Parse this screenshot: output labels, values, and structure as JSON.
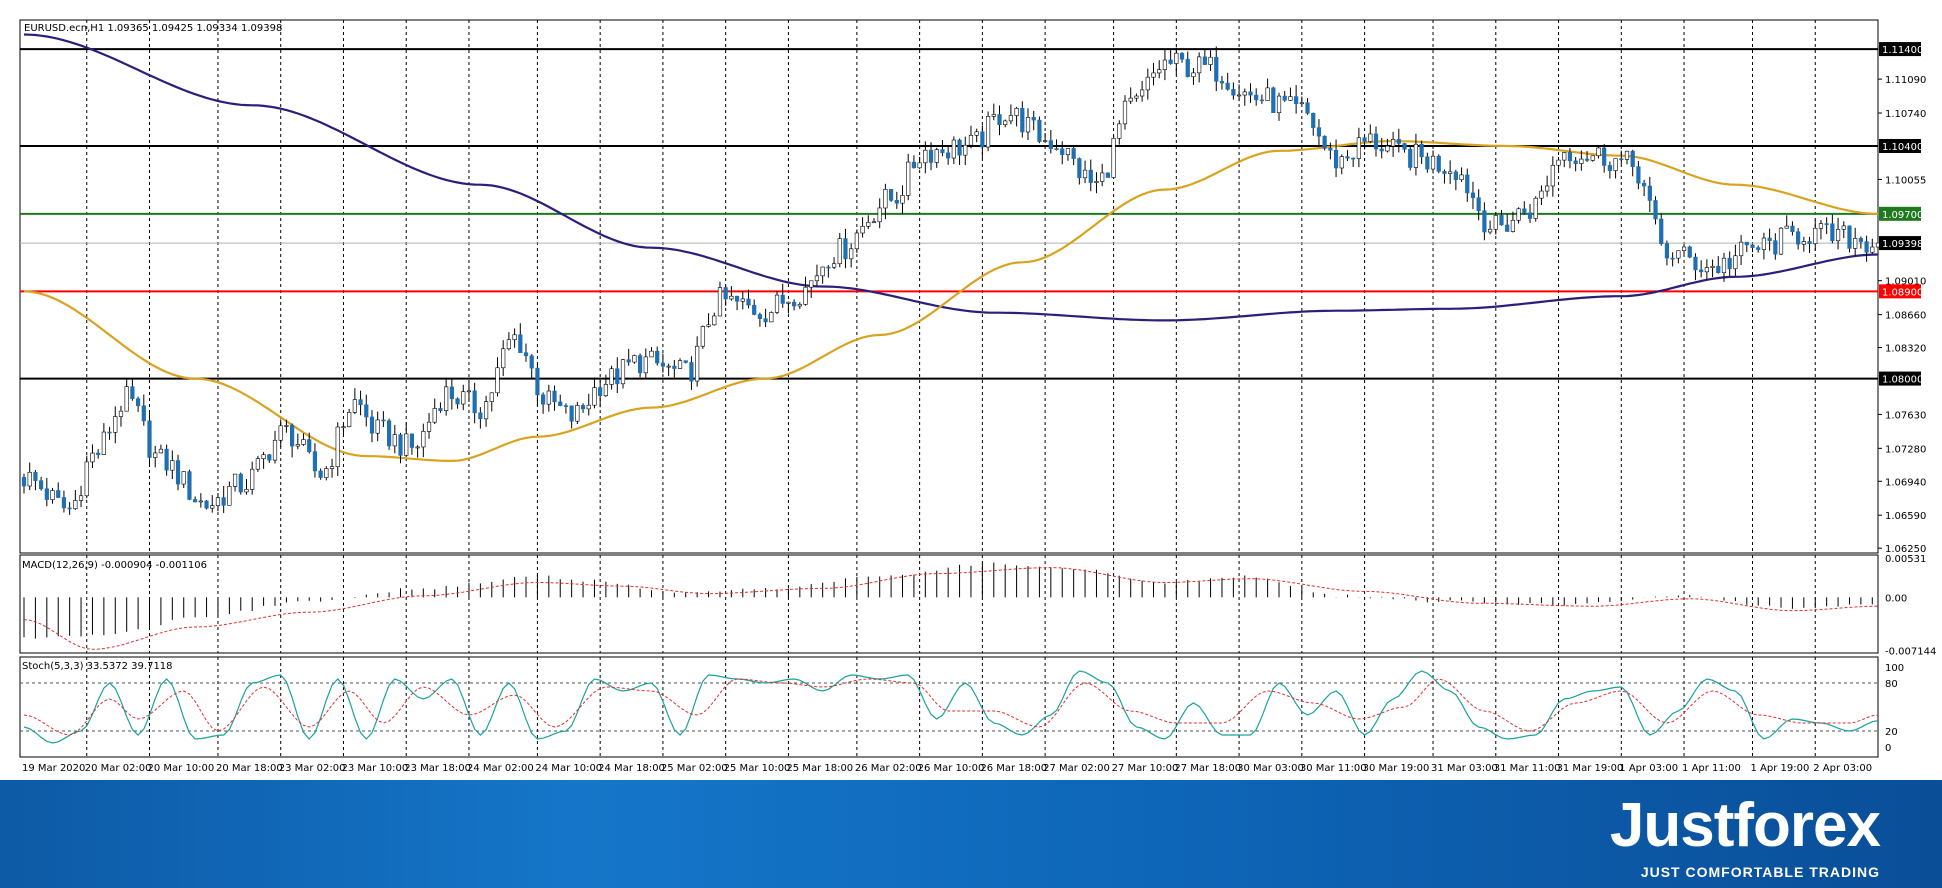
{
  "chart_data": {
    "type": "candlestick",
    "symbol_line": "EURUSD.ecn,H1  1.09365 1.09425 1.09334 1.09398",
    "price_axis_ticks": [
      "1.11090",
      "1.10740",
      "1.10055",
      "1.09010",
      "1.08660",
      "1.08320",
      "1.07630",
      "1.07280",
      "1.06940",
      "1.06590",
      "1.06250"
    ],
    "ylim": [
      1.062,
      1.117
    ],
    "levels": [
      {
        "label": "1.11400",
        "value": 1.114,
        "color": "#000000"
      },
      {
        "label": "1.10400",
        "value": 1.104,
        "color": "#000000"
      },
      {
        "label": "1.09700",
        "value": 1.097,
        "color": "#1f7a1f"
      },
      {
        "label": "1.09398",
        "value": 1.09398,
        "color": "#000000",
        "current": true
      },
      {
        "label": "1.08900",
        "value": 1.089,
        "color": "#ff0000"
      },
      {
        "label": "1.08000",
        "value": 1.08,
        "color": "#000000"
      }
    ],
    "time_axis_labels": [
      "19 Mar 2020",
      "20 Mar 02:00",
      "20 Mar 10:00",
      "20 Mar 18:00",
      "23 Mar 02:00",
      "23 Mar 10:00",
      "23 Mar 18:00",
      "24 Mar 02:00",
      "24 Mar 10:00",
      "24 Mar 18:00",
      "25 Mar 02:00",
      "25 Mar 10:00",
      "25 Mar 18:00",
      "26 Mar 02:00",
      "26 Mar 10:00",
      "26 Mar 18:00",
      "27 Mar 02:00",
      "27 Mar 10:00",
      "27 Mar 18:00",
      "30 Mar 03:00",
      "30 Mar 11:00",
      "30 Mar 19:00",
      "31 Mar 03:00",
      "31 Mar 11:00",
      "31 Mar 19:00",
      "1 Apr 03:00",
      "1 Apr 11:00",
      "1 Apr 19:00",
      "2 Apr 03:00"
    ],
    "close_anchors": [
      [
        0,
        1.0698
      ],
      [
        8,
        1.0665
      ],
      [
        12,
        1.072
      ],
      [
        18,
        1.0778
      ],
      [
        24,
        1.0715
      ],
      [
        32,
        1.067
      ],
      [
        38,
        1.069
      ],
      [
        46,
        1.0745
      ],
      [
        52,
        1.0702
      ],
      [
        58,
        1.0775
      ],
      [
        62,
        1.0745
      ],
      [
        68,
        1.0728
      ],
      [
        74,
        1.0785
      ],
      [
        80,
        1.077
      ],
      [
        86,
        1.0842
      ],
      [
        92,
        1.0775
      ],
      [
        96,
        1.076
      ],
      [
        102,
        1.0798
      ],
      [
        108,
        1.0818
      ],
      [
        116,
        1.0805
      ],
      [
        122,
        1.088
      ],
      [
        130,
        1.087
      ],
      [
        136,
        1.089
      ],
      [
        142,
        1.093
      ],
      [
        152,
        1.0985
      ],
      [
        158,
        1.1035
      ],
      [
        166,
        1.104
      ],
      [
        172,
        1.1075
      ],
      [
        180,
        1.1045
      ],
      [
        188,
        1.1
      ],
      [
        194,
        1.108
      ],
      [
        200,
        1.1125
      ],
      [
        208,
        1.112
      ],
      [
        216,
        1.109
      ],
      [
        224,
        1.1075
      ],
      [
        230,
        1.1025
      ],
      [
        236,
        1.1045
      ],
      [
        242,
        1.103
      ],
      [
        250,
        1.102
      ],
      [
        258,
        1.0955
      ],
      [
        264,
        1.0975
      ],
      [
        270,
        1.1035
      ],
      [
        276,
        1.103
      ],
      [
        282,
        1.102
      ],
      [
        288,
        1.093
      ],
      [
        296,
        1.0915
      ],
      [
        304,
        1.0935
      ],
      [
        312,
        1.095
      ],
      [
        320,
        1.0945
      ],
      [
        325,
        1.09398
      ]
    ],
    "ma_slow_anchors": [
      [
        0,
        1.1155
      ],
      [
        40,
        1.1082
      ],
      [
        80,
        1.1
      ],
      [
        110,
        1.0935
      ],
      [
        140,
        1.0895
      ],
      [
        170,
        1.0868
      ],
      [
        200,
        1.086
      ],
      [
        230,
        1.087
      ],
      [
        250,
        1.0872
      ],
      [
        280,
        1.0885
      ],
      [
        300,
        1.0905
      ],
      [
        325,
        1.0928
      ]
    ],
    "ma_fast_anchors": [
      [
        0,
        1.089
      ],
      [
        30,
        1.08
      ],
      [
        60,
        1.072
      ],
      [
        75,
        1.0715
      ],
      [
        90,
        1.074
      ],
      [
        110,
        1.077
      ],
      [
        130,
        1.08
      ],
      [
        150,
        1.0845
      ],
      [
        175,
        1.092
      ],
      [
        200,
        1.0995
      ],
      [
        220,
        1.1035
      ],
      [
        240,
        1.1045
      ],
      [
        260,
        1.104
      ],
      [
        280,
        1.103
      ],
      [
        300,
        1.1
      ],
      [
        325,
        1.097
      ]
    ],
    "macd": {
      "label": "MACD(12,26,9) -0.000904 -0.001106",
      "ticks": [
        "0.00531",
        "0.00",
        "-0.007144"
      ],
      "ylim": [
        -0.0075,
        0.0057
      ],
      "hist_anchors": [
        [
          0,
          -0.0055
        ],
        [
          15,
          -0.005
        ],
        [
          30,
          -0.0028
        ],
        [
          50,
          -0.0005
        ],
        [
          70,
          0.0012
        ],
        [
          90,
          0.0028
        ],
        [
          100,
          0.0022
        ],
        [
          115,
          0.0005
        ],
        [
          130,
          0.0012
        ],
        [
          150,
          0.0028
        ],
        [
          170,
          0.0046
        ],
        [
          185,
          0.0038
        ],
        [
          200,
          0.002
        ],
        [
          215,
          0.0028
        ],
        [
          230,
          0.0002
        ],
        [
          250,
          -0.0006
        ],
        [
          270,
          -0.001
        ],
        [
          290,
          0.0002
        ],
        [
          310,
          -0.0014
        ],
        [
          325,
          -0.0009
        ]
      ],
      "signal_anchors": [
        [
          0,
          -0.003
        ],
        [
          12,
          -0.007
        ],
        [
          30,
          -0.004
        ],
        [
          50,
          -0.002
        ],
        [
          70,
          0.0002
        ],
        [
          90,
          0.002
        ],
        [
          105,
          0.0015
        ],
        [
          120,
          0.0005
        ],
        [
          140,
          0.0012
        ],
        [
          160,
          0.0032
        ],
        [
          180,
          0.004
        ],
        [
          200,
          0.002
        ],
        [
          215,
          0.0025
        ],
        [
          235,
          0.0008
        ],
        [
          255,
          -0.0008
        ],
        [
          275,
          -0.0012
        ],
        [
          292,
          -0.0002
        ],
        [
          310,
          -0.0018
        ],
        [
          325,
          -0.0012
        ]
      ]
    },
    "stoch": {
      "label": "Stoch(5,3,3) 33.5372 39.7118",
      "ticks": [
        "100",
        "80",
        "20",
        "0"
      ],
      "ylim": [
        0,
        100
      ],
      "main_anchors": [
        [
          0,
          25
        ],
        [
          5,
          5
        ],
        [
          10,
          20
        ],
        [
          15,
          80
        ],
        [
          20,
          15
        ],
        [
          25,
          85
        ],
        [
          30,
          10
        ],
        [
          35,
          15
        ],
        [
          40,
          80
        ],
        [
          45,
          90
        ],
        [
          50,
          10
        ],
        [
          55,
          85
        ],
        [
          60,
          10
        ],
        [
          65,
          85
        ],
        [
          70,
          60
        ],
        [
          75,
          85
        ],
        [
          80,
          15
        ],
        [
          85,
          80
        ],
        [
          90,
          10
        ],
        [
          95,
          20
        ],
        [
          100,
          85
        ],
        [
          105,
          70
        ],
        [
          110,
          80
        ],
        [
          115,
          15
        ],
        [
          120,
          90
        ],
        [
          125,
          85
        ],
        [
          130,
          80
        ],
        [
          135,
          85
        ],
        [
          140,
          70
        ],
        [
          145,
          90
        ],
        [
          150,
          85
        ],
        [
          155,
          90
        ],
        [
          160,
          35
        ],
        [
          165,
          80
        ],
        [
          170,
          30
        ],
        [
          175,
          15
        ],
        [
          180,
          40
        ],
        [
          185,
          95
        ],
        [
          190,
          80
        ],
        [
          195,
          25
        ],
        [
          200,
          10
        ],
        [
          205,
          55
        ],
        [
          210,
          15
        ],
        [
          215,
          15
        ],
        [
          220,
          80
        ],
        [
          225,
          40
        ],
        [
          230,
          70
        ],
        [
          235,
          15
        ],
        [
          240,
          60
        ],
        [
          245,
          95
        ],
        [
          250,
          70
        ],
        [
          255,
          25
        ],
        [
          260,
          10
        ],
        [
          265,
          15
        ],
        [
          270,
          60
        ],
        [
          275,
          70
        ],
        [
          280,
          75
        ],
        [
          285,
          15
        ],
        [
          290,
          45
        ],
        [
          295,
          85
        ],
        [
          300,
          70
        ],
        [
          305,
          10
        ],
        [
          310,
          35
        ],
        [
          315,
          30
        ],
        [
          320,
          20
        ],
        [
          325,
          33
        ]
      ],
      "signal_anchors": [
        [
          0,
          40
        ],
        [
          8,
          15
        ],
        [
          15,
          60
        ],
        [
          20,
          35
        ],
        [
          28,
          70
        ],
        [
          34,
          20
        ],
        [
          42,
          75
        ],
        [
          50,
          25
        ],
        [
          57,
          70
        ],
        [
          63,
          30
        ],
        [
          70,
          75
        ],
        [
          78,
          40
        ],
        [
          86,
          65
        ],
        [
          93,
          25
        ],
        [
          102,
          75
        ],
        [
          110,
          70
        ],
        [
          118,
          40
        ],
        [
          125,
          85
        ],
        [
          133,
          80
        ],
        [
          140,
          75
        ],
        [
          148,
          85
        ],
        [
          156,
          80
        ],
        [
          162,
          45
        ],
        [
          170,
          45
        ],
        [
          178,
          25
        ],
        [
          186,
          80
        ],
        [
          194,
          45
        ],
        [
          202,
          30
        ],
        [
          210,
          30
        ],
        [
          218,
          70
        ],
        [
          226,
          55
        ],
        [
          234,
          35
        ],
        [
          242,
          50
        ],
        [
          248,
          85
        ],
        [
          256,
          45
        ],
        [
          264,
          20
        ],
        [
          272,
          55
        ],
        [
          280,
          70
        ],
        [
          288,
          30
        ],
        [
          296,
          70
        ],
        [
          304,
          40
        ],
        [
          312,
          30
        ],
        [
          320,
          30
        ],
        [
          325,
          40
        ]
      ]
    }
  },
  "footer": {
    "brand": "Justforex",
    "tagline": "JUST COMFORTABLE TRADING"
  }
}
